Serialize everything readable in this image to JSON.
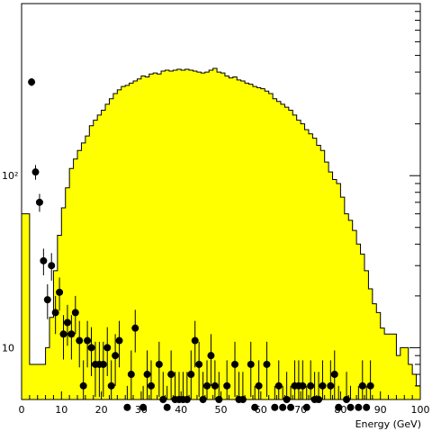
{
  "chart_data": {
    "type": "bar",
    "title": "",
    "xlabel": "Energy (GeV)",
    "ylabel": "",
    "xlim": [
      0,
      100
    ],
    "ylim": [
      5,
      1000
    ],
    "y_scale": "log",
    "grid": false,
    "x_ticks": [
      {
        "value": 0,
        "label": "0"
      },
      {
        "value": 10,
        "label": "10"
      },
      {
        "value": 20,
        "label": "20"
      },
      {
        "value": 30,
        "label": "30"
      },
      {
        "value": 40,
        "label": "40"
      },
      {
        "value": 50,
        "label": "50"
      },
      {
        "value": 60,
        "label": "60"
      },
      {
        "value": 70,
        "label": "70"
      },
      {
        "value": 80,
        "label": "80"
      },
      {
        "value": 90,
        "label": "90"
      },
      {
        "value": 100,
        "label": "100"
      }
    ],
    "y_ticks": [
      {
        "value": 10,
        "label": "10"
      },
      {
        "value": 100,
        "label": "10²"
      }
    ],
    "colors": {
      "histogram_fill": "#ffff00",
      "histogram_line": "#000000",
      "points": "#000000"
    },
    "series": [
      {
        "kind": "histogram",
        "bin_width": 1,
        "x_start": 0,
        "values": [
          60,
          60,
          8,
          8,
          8,
          8,
          10,
          15,
          28,
          45,
          65,
          85,
          110,
          125,
          140,
          155,
          170,
          195,
          210,
          225,
          240,
          260,
          280,
          300,
          315,
          330,
          335,
          345,
          355,
          365,
          380,
          375,
          390,
          395,
          390,
          405,
          410,
          405,
          410,
          415,
          410,
          415,
          410,
          405,
          400,
          395,
          400,
          410,
          420,
          400,
          395,
          380,
          370,
          375,
          360,
          355,
          345,
          340,
          330,
          325,
          320,
          310,
          300,
          280,
          270,
          260,
          250,
          240,
          225,
          210,
          200,
          185,
          175,
          165,
          150,
          140,
          120,
          105,
          95,
          90,
          75,
          60,
          55,
          48,
          40,
          35,
          28,
          22,
          18,
          16,
          13,
          12,
          12,
          12,
          9,
          10,
          10,
          8,
          7,
          6
        ]
      },
      {
        "kind": "points",
        "x": [
          2.5,
          3.5,
          4.5,
          5.5,
          6.5,
          7.5,
          8.5,
          9.5,
          10.5,
          11.5,
          12.5,
          13.5,
          14.5,
          15.5,
          16.5,
          17.5,
          18.5,
          19.5,
          20.5,
          21.5,
          22.5,
          23.5,
          24.5,
          26.5,
          27.5,
          28.5,
          30.5,
          31.5,
          32.5,
          34.5,
          35.5,
          36.5,
          37.5,
          38.5,
          39.5,
          40.5,
          41.5,
          42.5,
          43.5,
          44.5,
          45.5,
          46.5,
          47.5,
          48.5,
          49.5,
          51.5,
          53.5,
          54.5,
          55.5,
          57.5,
          58.5,
          59.5,
          61.5,
          63.5,
          64.5,
          65.5,
          66.5,
          67.5,
          68.5,
          69.5,
          70.5,
          71.5,
          72.5,
          73.5,
          74.5,
          75.5,
          77.5,
          78.5,
          79.5,
          81.5,
          82.5,
          84.5,
          85.5,
          86.5,
          87.5
        ],
        "y": [
          350,
          105,
          70,
          32,
          19,
          30,
          16,
          21,
          12,
          14,
          12,
          16,
          11,
          6,
          11,
          10,
          8,
          8,
          8,
          10,
          6,
          9,
          11,
          4,
          7,
          13,
          4,
          7,
          6,
          8,
          5,
          4,
          7,
          5,
          5,
          5,
          5,
          7,
          11,
          8,
          5,
          6,
          9,
          6,
          5,
          6,
          8,
          5,
          5,
          8,
          4,
          6,
          8,
          4,
          6,
          4,
          5,
          4,
          6,
          6,
          6,
          4,
          6,
          5,
          5,
          6,
          6,
          7,
          4,
          5,
          4,
          4,
          6,
          4,
          6
        ]
      }
    ]
  }
}
